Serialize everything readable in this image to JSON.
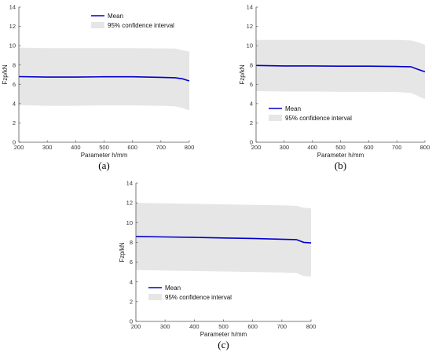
{
  "chart_data": [
    {
      "type": "line",
      "panel_label": "(a)",
      "xlabel": "Parameter h/mm",
      "ylabel": "Fzp/kN",
      "xlim": [
        200,
        800
      ],
      "ylim": [
        0,
        14
      ],
      "x_ticks": [
        "200",
        "300",
        "400",
        "500",
        "600",
        "700",
        "800"
      ],
      "y_ticks": [
        "0",
        "2",
        "4",
        "6",
        "8",
        "10",
        "12",
        "14"
      ],
      "grid": false,
      "legend_position": "top-center",
      "x": [
        200,
        300,
        400,
        500,
        600,
        700,
        750,
        775,
        800
      ],
      "series": [
        {
          "name": "Mean",
          "type": "line",
          "color": "#0000cc",
          "values": [
            6.8,
            6.75,
            6.75,
            6.78,
            6.78,
            6.72,
            6.68,
            6.58,
            6.35
          ]
        },
        {
          "name": "95% confidence interval",
          "type": "band",
          "color": "#e6e6e6",
          "upper": [
            9.8,
            9.75,
            9.75,
            9.75,
            9.75,
            9.72,
            9.7,
            9.55,
            9.4
          ],
          "lower": [
            3.85,
            3.78,
            3.78,
            3.82,
            3.82,
            3.78,
            3.72,
            3.55,
            3.3
          ]
        }
      ]
    },
    {
      "type": "line",
      "panel_label": "(b)",
      "xlabel": "Parameter h/mm",
      "ylabel": "Fzp/kN",
      "xlim": [
        200,
        800
      ],
      "ylim": [
        0,
        14
      ],
      "x_ticks": [
        "200",
        "300",
        "400",
        "500",
        "600",
        "700",
        "800"
      ],
      "y_ticks": [
        "0",
        "2",
        "4",
        "6",
        "8",
        "10",
        "12",
        "14"
      ],
      "grid": false,
      "legend_position": "bottom-left",
      "x": [
        200,
        300,
        400,
        500,
        600,
        700,
        750,
        775,
        800
      ],
      "series": [
        {
          "name": "Mean",
          "type": "line",
          "color": "#0000cc",
          "values": [
            7.95,
            7.9,
            7.9,
            7.88,
            7.88,
            7.85,
            7.82,
            7.55,
            7.3
          ]
        },
        {
          "name": "95% confidence interval",
          "type": "band",
          "color": "#e6e6e6",
          "upper": [
            10.6,
            10.6,
            10.6,
            10.6,
            10.6,
            10.6,
            10.55,
            10.35,
            10.1
          ],
          "lower": [
            5.3,
            5.25,
            5.25,
            5.22,
            5.22,
            5.2,
            5.1,
            4.8,
            4.45
          ]
        }
      ]
    },
    {
      "type": "line",
      "panel_label": "(c)",
      "xlabel": "Parameter h/mm",
      "ylabel": "Fzp/kN",
      "xlim": [
        200,
        800
      ],
      "ylim": [
        0,
        14
      ],
      "x_ticks": [
        "200",
        "300",
        "400",
        "500",
        "600",
        "700",
        "800"
      ],
      "y_ticks": [
        "0",
        "2",
        "4",
        "6",
        "8",
        "10",
        "12",
        "14"
      ],
      "grid": false,
      "legend_position": "bottom-left",
      "x": [
        200,
        300,
        400,
        500,
        600,
        700,
        750,
        775,
        800
      ],
      "series": [
        {
          "name": "Mean",
          "type": "line",
          "color": "#0000cc",
          "values": [
            8.6,
            8.55,
            8.5,
            8.45,
            8.4,
            8.32,
            8.28,
            8.0,
            7.95
          ]
        },
        {
          "name": "95% confidence interval",
          "type": "band",
          "color": "#e6e6e6",
          "upper": [
            12.0,
            11.95,
            11.9,
            11.85,
            11.8,
            11.75,
            11.7,
            11.5,
            11.45
          ],
          "lower": [
            5.2,
            5.15,
            5.1,
            5.05,
            5.0,
            4.95,
            4.9,
            4.6,
            4.55
          ]
        }
      ]
    }
  ]
}
